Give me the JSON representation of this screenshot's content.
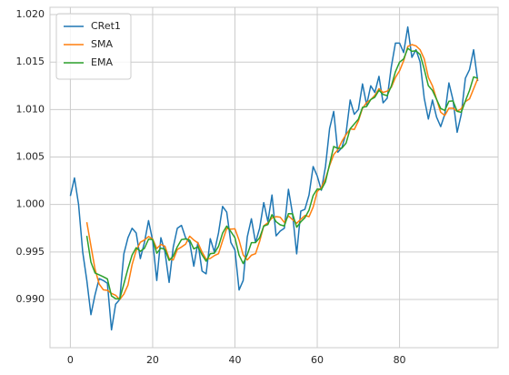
{
  "chart_data": {
    "type": "line",
    "x": [
      0,
      1,
      2,
      3,
      4,
      5,
      6,
      7,
      8,
      9,
      10,
      11,
      12,
      13,
      14,
      15,
      16,
      17,
      18,
      19,
      20,
      21,
      22,
      23,
      24,
      25,
      26,
      27,
      28,
      29,
      30,
      31,
      32,
      33,
      34,
      35,
      36,
      37,
      38,
      39,
      40,
      41,
      42,
      43,
      44,
      45,
      46,
      47,
      48,
      49,
      50,
      51,
      52,
      53,
      54,
      55,
      56,
      57,
      58,
      59,
      60,
      61,
      62,
      63,
      64,
      65,
      66,
      67,
      68,
      69,
      70,
      71,
      72,
      73,
      74,
      75,
      76,
      77,
      78,
      79,
      80,
      81,
      82,
      83,
      84,
      85,
      86,
      87,
      88,
      89,
      90,
      91,
      92,
      93,
      94,
      95,
      96,
      97,
      98,
      99
    ],
    "series": [
      {
        "name": "CRet1",
        "color": "#1f77b4",
        "values": [
          1.0009,
          1.0028,
          1.0,
          0.995,
          0.992,
          0.9884,
          0.9905,
          0.9922,
          0.992,
          0.9917,
          0.9868,
          0.9895,
          0.99,
          0.9948,
          0.9965,
          0.9975,
          0.997,
          0.9943,
          0.996,
          0.9983,
          0.9962,
          0.992,
          0.9965,
          0.995,
          0.9918,
          0.9955,
          0.9975,
          0.9978,
          0.9965,
          0.996,
          0.9935,
          0.996,
          0.993,
          0.9927,
          0.9964,
          0.995,
          0.997,
          0.9998,
          0.9992,
          0.996,
          0.9952,
          0.991,
          0.992,
          0.9966,
          0.9985,
          0.996,
          0.9975,
          1.0002,
          0.9982,
          1.001,
          0.9967,
          0.9972,
          0.9975,
          1.0016,
          0.999,
          0.9948,
          0.9993,
          0.9995,
          1.001,
          1.004,
          1.003,
          1.0015,
          1.004,
          1.008,
          1.0098,
          1.0055,
          1.006,
          1.0075,
          1.011,
          1.0095,
          1.01,
          1.0127,
          1.0105,
          1.0125,
          1.0118,
          1.0135,
          1.0107,
          1.0112,
          1.0145,
          1.017,
          1.017,
          1.016,
          1.0187,
          1.0155,
          1.0163,
          1.015,
          1.0112,
          1.009,
          1.011,
          1.0092,
          1.0082,
          1.0095,
          1.0128,
          1.011,
          1.0076,
          1.0095,
          1.0133,
          1.0142,
          1.0163,
          1.013
        ]
      },
      {
        "name": "SMA",
        "color": "#ff7f0e",
        "values": [
          null,
          null,
          null,
          null,
          0.99814,
          0.99564,
          0.99318,
          0.99162,
          0.99102,
          0.99096,
          0.99064,
          0.99044,
          0.99,
          0.99056,
          0.99152,
          0.99366,
          0.99516,
          0.99602,
          0.99626,
          0.99662,
          0.99636,
          0.99536,
          0.9958,
          0.9956,
          0.9943,
          0.99416,
          0.99526,
          0.99552,
          0.99582,
          0.99666,
          0.99626,
          0.99596,
          0.995,
          0.99424,
          0.99432,
          0.99462,
          0.99482,
          0.99618,
          0.99748,
          0.9974,
          0.99744,
          0.99624,
          0.99468,
          0.99416,
          0.99466,
          0.99482,
          0.99612,
          0.99776,
          0.99808,
          0.99858,
          0.99872,
          0.99866,
          0.99812,
          0.9988,
          0.9984,
          0.99802,
          0.99844,
          0.99884,
          0.99872,
          0.99972,
          1.00136,
          1.0018,
          1.0027,
          1.0041,
          1.00526,
          1.00576,
          1.00666,
          1.00736,
          1.00796,
          1.0079,
          1.0088,
          1.01014,
          1.01074,
          1.01104,
          1.0115,
          1.0122,
          1.0118,
          1.01194,
          1.01234,
          1.01338,
          1.01408,
          1.01514,
          1.01664,
          1.01684,
          1.0167,
          1.0163,
          1.01534,
          1.0134,
          1.0125,
          1.01108,
          1.00972,
          1.00938,
          1.01014,
          1.01014,
          1.00982,
          1.01008,
          1.01084,
          1.01112,
          1.01218,
          1.01326
        ]
      },
      {
        "name": "EMA",
        "color": "#2ca02c",
        "values": [
          null,
          null,
          null,
          null,
          0.9967,
          0.99393,
          0.99279,
          0.99259,
          0.99239,
          0.99216,
          0.99037,
          0.99008,
          0.99005,
          0.99163,
          0.99325,
          0.99467,
          0.99545,
          0.99507,
          0.99538,
          0.99635,
          0.9963,
          0.99487,
          0.99541,
          0.99527,
          0.99411,
          0.99457,
          0.99555,
          0.9963,
          0.99637,
          0.99625,
          0.99533,
          0.99555,
          0.9947,
          0.99403,
          0.99482,
          0.99488,
          0.99559,
          0.99699,
          0.99773,
          0.99715,
          0.9965,
          0.99467,
          0.99378,
          0.99472,
          0.99598,
          0.99599,
          0.99649,
          0.99773,
          0.99789,
          0.99893,
          0.99819,
          0.99786,
          0.99774,
          0.99903,
          0.99902,
          0.99761,
          0.99817,
          0.99861,
          0.99941,
          1.00094,
          1.00163,
          1.00159,
          1.00239,
          1.00426,
          1.00611,
          1.00591,
          1.00594,
          1.00646,
          1.00797,
          1.00848,
          1.00899,
          1.01023,
          1.01032,
          1.01105,
          1.0113,
          1.01203,
          1.01159,
          1.01146,
          1.01247,
          1.01398,
          1.01499,
          1.01533,
          1.01645,
          1.01613,
          1.01619,
          1.01579,
          1.01426,
          1.01251,
          1.01201,
          1.01107,
          1.01011,
          1.00991,
          1.01087,
          1.01091,
          1.00981,
          1.00971,
          1.01091,
          1.01201,
          1.01344,
          1.01329
        ]
      }
    ],
    "xlim": [
      -4.95,
      103.95
    ],
    "xticks": [
      0,
      20,
      40,
      60,
      80
    ],
    "ylim": [
      0.98492,
      1.02077
    ],
    "yticks": [
      {
        "value": 0.99,
        "label": "0.990"
      },
      {
        "value": 0.995,
        "label": "0.995"
      },
      {
        "value": 1.0,
        "label": "1.000"
      },
      {
        "value": 1.005,
        "label": "1.005"
      },
      {
        "value": 1.01,
        "label": "1.010"
      },
      {
        "value": 1.015,
        "label": "1.015"
      },
      {
        "value": 1.02,
        "label": "1.020"
      }
    ],
    "grid": true,
    "legend": "upper left"
  }
}
